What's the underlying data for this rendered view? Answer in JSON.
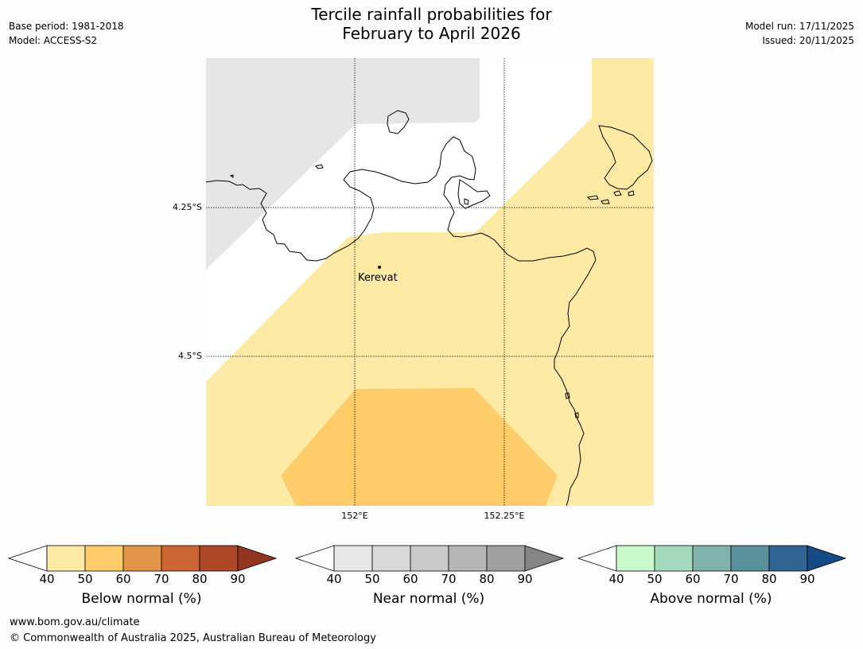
{
  "title": {
    "line1": "Tercile rainfall probabilities for",
    "line2": "February to April 2026"
  },
  "meta_left": {
    "base_period": "Base period: 1981-2018",
    "model": "Model: ACCESS-S2"
  },
  "meta_right": {
    "model_run": "Model run: 17/11/2025",
    "issued": "Issued: 20/11/2025"
  },
  "map": {
    "lat_labels": [
      "4.25°S",
      "4.5°S"
    ],
    "lon_labels": [
      "152°E",
      "152.25°E"
    ],
    "place_label": "Kerevat",
    "colors": {
      "land_outline": "#000000",
      "near_normal_40_50": "#e6e6e6",
      "below_normal_40_50": "#fdeaa4",
      "below_normal_50_60": "#fecc68",
      "no_dominant": "#ffffff"
    }
  },
  "colorbars": [
    {
      "title": "Below normal (%)",
      "ticks": [
        "40",
        "50",
        "60",
        "70",
        "80",
        "90"
      ],
      "colors": [
        "#fdeaa4",
        "#fecc68",
        "#e29548",
        "#cd6534",
        "#ae4628",
        "#923521"
      ]
    },
    {
      "title": "Near normal (%)",
      "ticks": [
        "40",
        "50",
        "60",
        "70",
        "80",
        "90"
      ],
      "colors": [
        "#e8e8e8",
        "#d9d9d9",
        "#c9c9c9",
        "#b5b5b5",
        "#a0a0a0",
        "#858585"
      ]
    },
    {
      "title": "Above normal (%)",
      "ticks": [
        "40",
        "50",
        "60",
        "70",
        "80",
        "90"
      ],
      "colors": [
        "#c8facb",
        "#a5d9bb",
        "#80b3ae",
        "#5a8f9c",
        "#306493",
        "#154b84"
      ]
    }
  ],
  "footer": {
    "url": "www.bom.gov.au/climate",
    "copyright": "© Commonwealth of Australia 2025, Australian Bureau of Meteorology"
  }
}
